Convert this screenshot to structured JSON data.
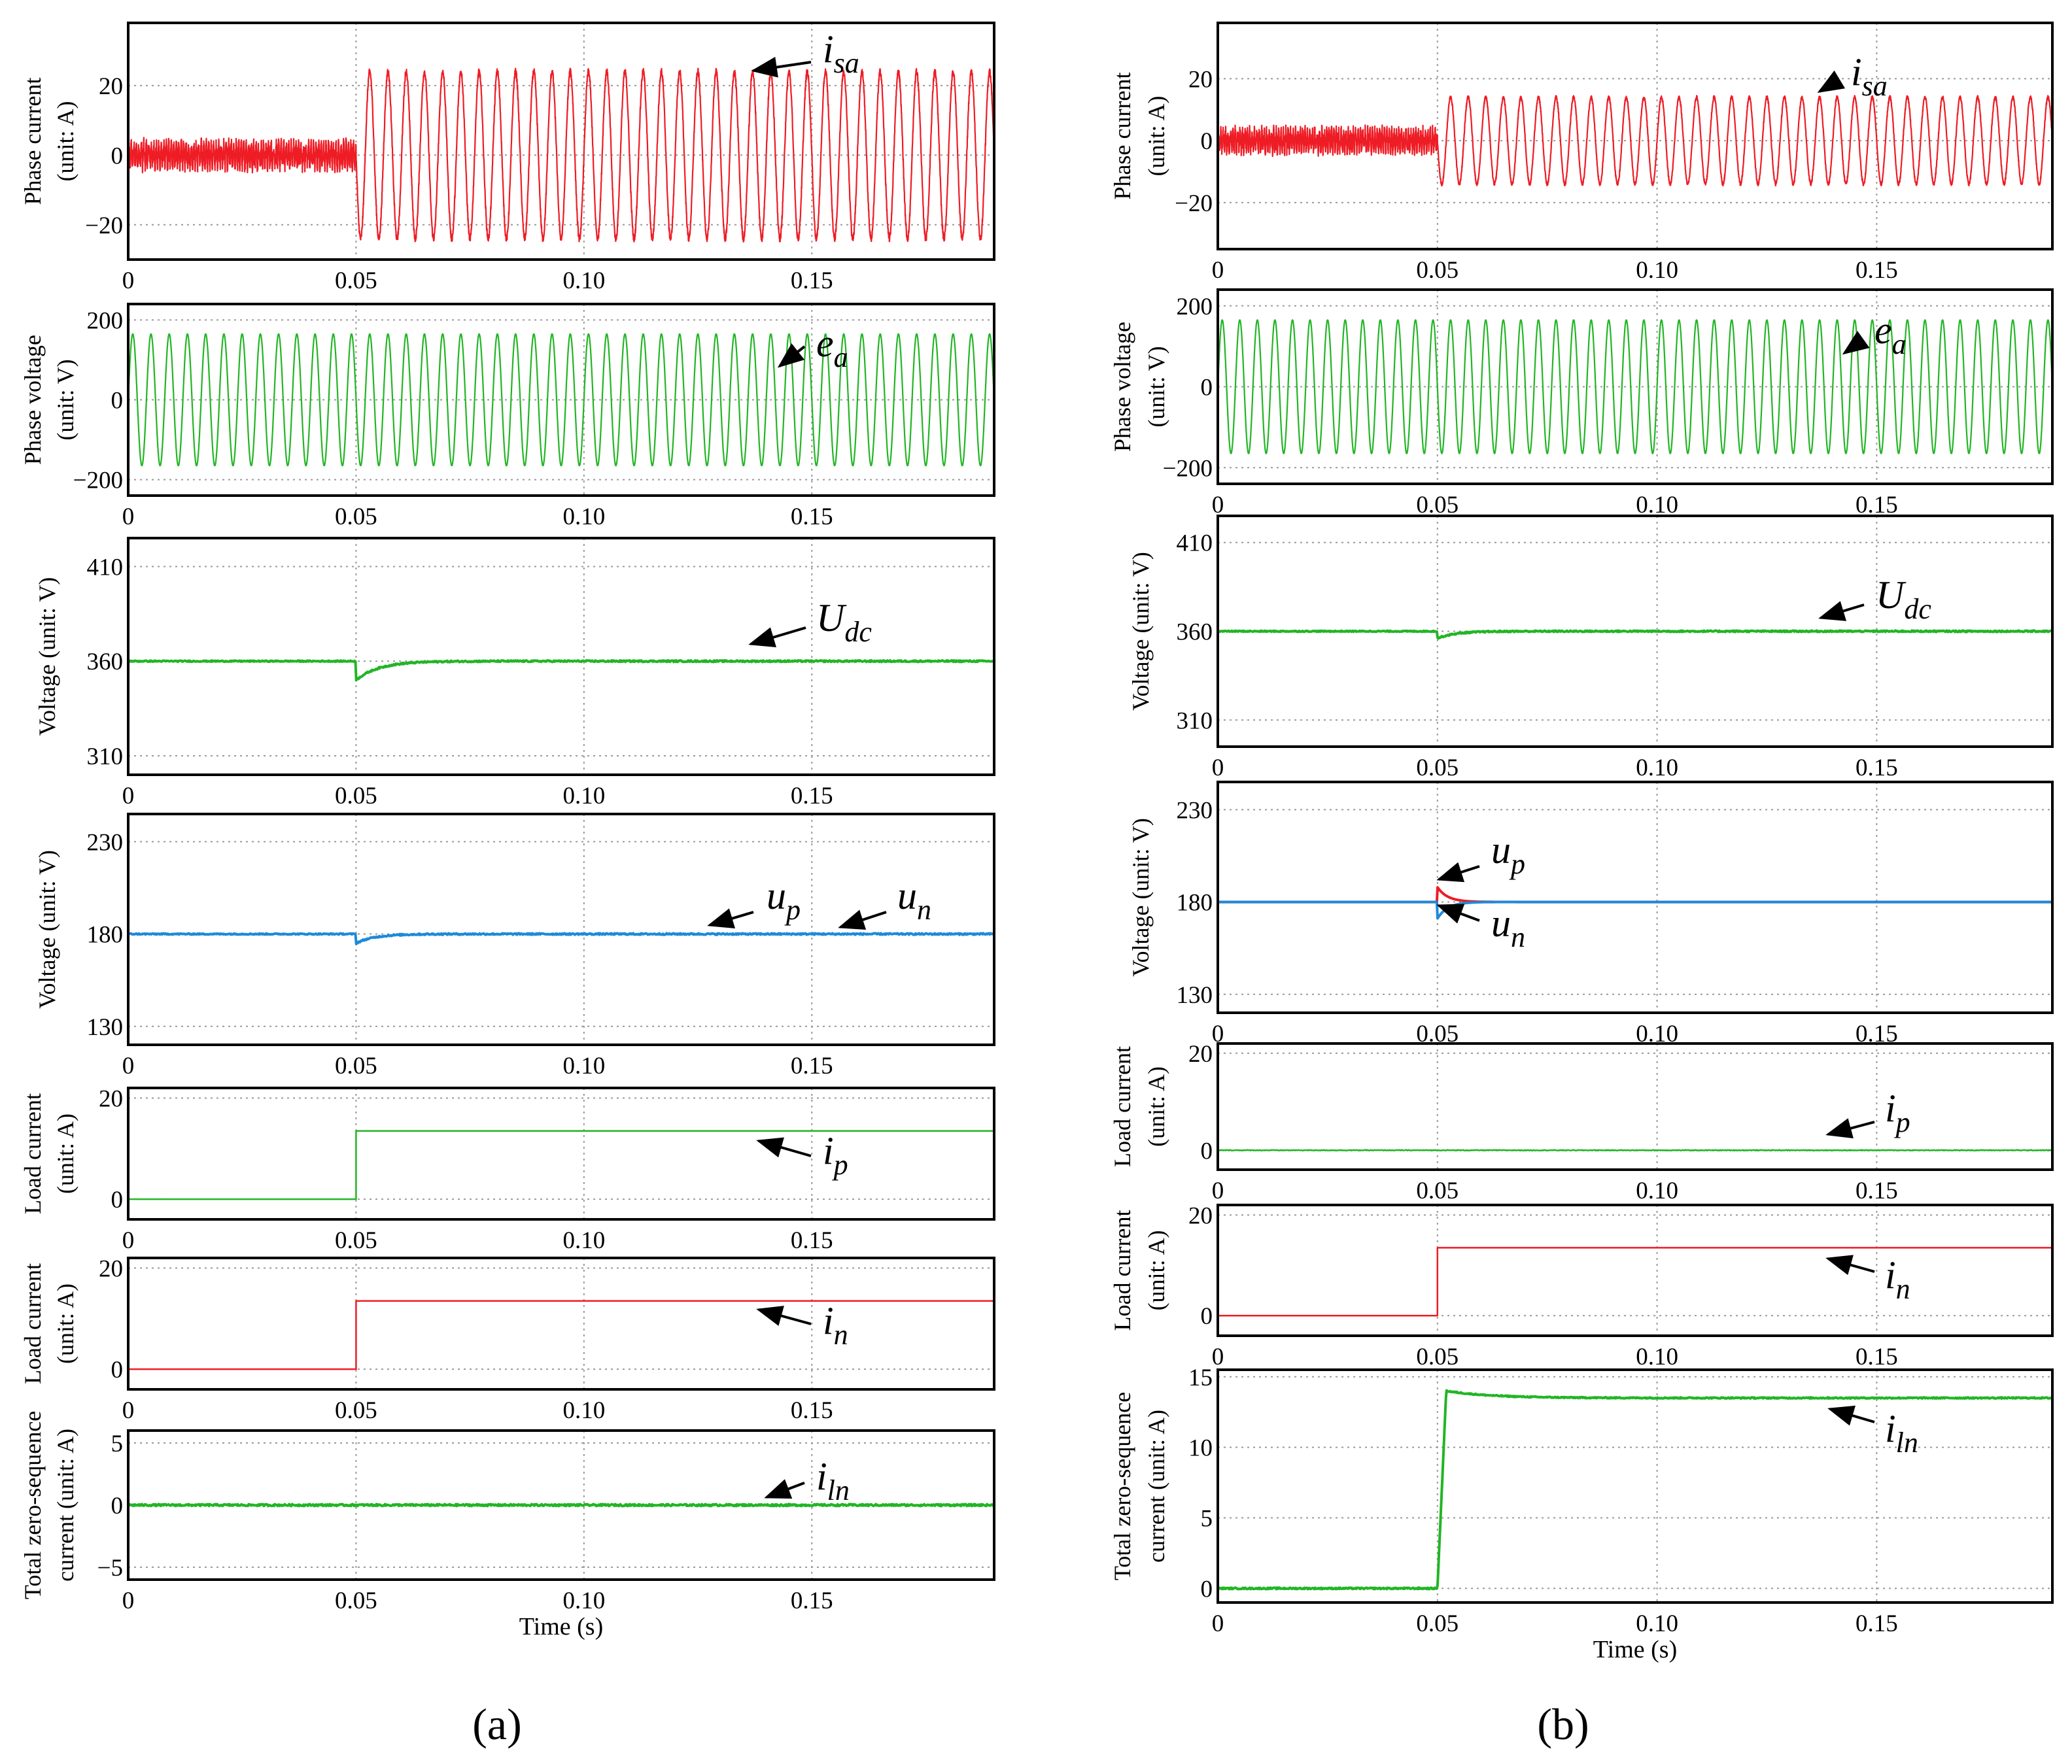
{
  "panel_labels": {
    "a": "(a)",
    "b": "(b)"
  },
  "chart_data": [
    {
      "id": "a1",
      "type": "line",
      "ylabel_lines": [
        "Phase current",
        "(unit: A)"
      ],
      "xlim": [
        0,
        0.19
      ],
      "ylim": [
        -30,
        38
      ],
      "xticks": [
        0,
        0.05,
        0.1,
        0.15
      ],
      "xtick_labels": [
        "0",
        "0.05",
        "0.10",
        "0.15"
      ],
      "yticks": [
        20,
        0,
        -20
      ],
      "ytick_labels": [
        "20",
        "0",
        "−20"
      ],
      "xlabel": "",
      "series": [
        {
          "color": "#ee1c25",
          "waveform": "sine_step",
          "pre_amplitude": 3,
          "post_amplitude": 24,
          "step_time": 0.05,
          "frequency_hz": 250
        }
      ],
      "annotations": [
        {
          "main": "i",
          "sub": "sa"
        }
      ]
    },
    {
      "id": "a2",
      "type": "line",
      "ylabel_lines": [
        "Phase voltage",
        "(unit: V)"
      ],
      "xlim": [
        0,
        0.19
      ],
      "ylim": [
        -240,
        240
      ],
      "xticks": [
        0,
        0.05,
        0.1,
        0.15
      ],
      "xtick_labels": [
        "0",
        "0.05",
        "0.10",
        "0.15"
      ],
      "yticks": [
        200,
        0,
        -200
      ],
      "ytick_labels": [
        "200",
        "0",
        "−200"
      ],
      "xlabel": "",
      "series": [
        {
          "color": "#22b525",
          "waveform": "sine",
          "amplitude": 165,
          "frequency_hz": 250
        }
      ],
      "annotations": [
        {
          "main": "e",
          "sub": "a"
        }
      ]
    },
    {
      "id": "a3",
      "type": "line",
      "ylabel_lines": [
        "Voltage (unit: V)"
      ],
      "xlim": [
        0,
        0.19
      ],
      "ylim": [
        300,
        425
      ],
      "xticks": [
        0,
        0.05,
        0.1,
        0.15
      ],
      "xtick_labels": [
        "0",
        "0.05",
        "0.10",
        "0.15"
      ],
      "yticks": [
        410,
        360,
        310
      ],
      "ytick_labels": [
        "410",
        "360",
        "310"
      ],
      "xlabel": "",
      "series": [
        {
          "color": "#22b525",
          "waveform": "dip_recover",
          "level": 360,
          "dip": 10,
          "step_time": 0.05,
          "recovery_s": 0.015
        }
      ],
      "annotations": [
        {
          "main": "U",
          "sub": "dc"
        }
      ]
    },
    {
      "id": "a4",
      "type": "line",
      "ylabel_lines": [
        "Voltage (unit: V)"
      ],
      "xlim": [
        0,
        0.19
      ],
      "ylim": [
        120,
        245
      ],
      "xticks": [
        0,
        0.05,
        0.1,
        0.15
      ],
      "xtick_labels": [
        "0",
        "0.05",
        "0.10",
        "0.15"
      ],
      "yticks": [
        230,
        180,
        130
      ],
      "ytick_labels": [
        "230",
        "180",
        "130"
      ],
      "xlabel": "",
      "series": [
        {
          "color": "#1e8ad7",
          "waveform": "dip_recover",
          "level": 180,
          "dip": 5,
          "step_time": 0.05,
          "recovery_s": 0.012
        }
      ],
      "annotations": [
        {
          "main": "u",
          "sub": "p"
        },
        {
          "main": "u",
          "sub": "n"
        }
      ]
    },
    {
      "id": "a5",
      "type": "line",
      "ylabel_lines": [
        "Load current",
        "(unit: A)"
      ],
      "xlim": [
        0,
        0.19
      ],
      "ylim": [
        -4,
        22
      ],
      "xticks": [
        0,
        0.05,
        0.1,
        0.15
      ],
      "xtick_labels": [
        "0",
        "0.05",
        "0.10",
        "0.15"
      ],
      "yticks": [
        20,
        0
      ],
      "ytick_labels": [
        "20",
        "0"
      ],
      "xlabel": "",
      "series": [
        {
          "color": "#22b525",
          "waveform": "step",
          "pre": 0,
          "post": 13.5,
          "step_time": 0.05
        }
      ],
      "annotations": [
        {
          "main": "i",
          "sub": "p"
        }
      ]
    },
    {
      "id": "a6",
      "type": "line",
      "ylabel_lines": [
        "Load current",
        "(unit: A)"
      ],
      "xlim": [
        0,
        0.19
      ],
      "ylim": [
        -4,
        22
      ],
      "xticks": [
        0,
        0.05,
        0.1,
        0.15
      ],
      "xtick_labels": [
        "0",
        "0.05",
        "0.10",
        "0.15"
      ],
      "yticks": [
        20,
        0
      ],
      "ytick_labels": [
        "20",
        "0"
      ],
      "xlabel": "",
      "series": [
        {
          "color": "#ee1c25",
          "waveform": "step",
          "pre": 0,
          "post": 13.5,
          "step_time": 0.05
        }
      ],
      "annotations": [
        {
          "main": "i",
          "sub": "n"
        }
      ]
    },
    {
      "id": "a7",
      "type": "line",
      "ylabel_lines": [
        "Total zero-sequence",
        "current (unit: A)"
      ],
      "xlim": [
        0,
        0.19
      ],
      "ylim": [
        -6,
        6
      ],
      "xticks": [
        0,
        0.05,
        0.1,
        0.15
      ],
      "xtick_labels": [
        "0",
        "0.05",
        "0.10",
        "0.15"
      ],
      "yticks": [
        5,
        0,
        -5
      ],
      "ytick_labels": [
        "5",
        "0",
        "−5"
      ],
      "xlabel": "Time (s)",
      "series": [
        {
          "color": "#22b525",
          "waveform": "constant",
          "level": 0
        }
      ],
      "annotations": [
        {
          "main": "i",
          "sub": "ln"
        }
      ]
    },
    {
      "id": "b1",
      "type": "line",
      "ylabel_lines": [
        "Phase current",
        "(unit: A)"
      ],
      "xlim": [
        0,
        0.19
      ],
      "ylim": [
        -35,
        38
      ],
      "xticks": [
        0,
        0.05,
        0.1,
        0.15
      ],
      "xtick_labels": [
        "0",
        "0.05",
        "0.10",
        "0.15"
      ],
      "yticks": [
        20,
        0,
        -20
      ],
      "ytick_labels": [
        "20",
        "0",
        "−20"
      ],
      "xlabel": "",
      "series": [
        {
          "color": "#ee1c25",
          "waveform": "sine_step",
          "pre_amplitude": 3,
          "post_amplitude": 14,
          "step_time": 0.05,
          "frequency_hz": 250
        }
      ],
      "annotations": [
        {
          "main": "i",
          "sub": "sa"
        }
      ]
    },
    {
      "id": "b2",
      "type": "line",
      "ylabel_lines": [
        "Phase voltage",
        "(unit: V)"
      ],
      "xlim": [
        0,
        0.19
      ],
      "ylim": [
        -240,
        240
      ],
      "xticks": [
        0,
        0.05,
        0.1,
        0.15
      ],
      "xtick_labels": [
        "0",
        "0.05",
        "0.10",
        "0.15"
      ],
      "yticks": [
        200,
        0,
        -200
      ],
      "ytick_labels": [
        "200",
        "0",
        "−200"
      ],
      "xlabel": "",
      "series": [
        {
          "color": "#22b525",
          "waveform": "sine",
          "amplitude": 165,
          "frequency_hz": 250
        }
      ],
      "annotations": [
        {
          "main": "e",
          "sub": "a"
        }
      ]
    },
    {
      "id": "b3",
      "type": "line",
      "ylabel_lines": [
        "Voltage (unit: V)"
      ],
      "xlim": [
        0,
        0.19
      ],
      "ylim": [
        295,
        425
      ],
      "xticks": [
        0,
        0.05,
        0.1,
        0.15
      ],
      "xtick_labels": [
        "0",
        "0.05",
        "0.10",
        "0.15"
      ],
      "yticks": [
        410,
        360,
        310
      ],
      "ytick_labels": [
        "410",
        "360",
        "310"
      ],
      "xlabel": "",
      "series": [
        {
          "color": "#22b525",
          "waveform": "dip_recover",
          "level": 360,
          "dip": 4,
          "step_time": 0.05,
          "recovery_s": 0.012
        }
      ],
      "annotations": [
        {
          "main": "U",
          "sub": "dc"
        }
      ]
    },
    {
      "id": "b4",
      "type": "line",
      "ylabel_lines": [
        "Voltage (unit: V)"
      ],
      "xlim": [
        0,
        0.19
      ],
      "ylim": [
        120,
        245
      ],
      "xticks": [
        0,
        0.05,
        0.1,
        0.15
      ],
      "xtick_labels": [
        "0",
        "0.05",
        "0.10",
        "0.15"
      ],
      "yticks": [
        230,
        180,
        130
      ],
      "ytick_labels": [
        "230",
        "180",
        "130"
      ],
      "xlabel": "",
      "series": [
        {
          "color": "#ee1c25",
          "waveform": "spike_decay",
          "level": 180,
          "peak": 188,
          "step_time": 0.05,
          "decay_s": 0.007
        },
        {
          "color": "#1e8ad7",
          "waveform": "spike_decay",
          "level": 180,
          "peak": 171,
          "step_time": 0.05,
          "decay_s": 0.007
        }
      ],
      "annotations": [
        {
          "main": "u",
          "sub": "p"
        },
        {
          "main": "u",
          "sub": "n"
        }
      ]
    },
    {
      "id": "b5",
      "type": "line",
      "ylabel_lines": [
        "Load current",
        "(unit: A)"
      ],
      "xlim": [
        0,
        0.19
      ],
      "ylim": [
        -4,
        22
      ],
      "xticks": [
        0,
        0.05,
        0.1,
        0.15
      ],
      "xtick_labels": [
        "0",
        "0.05",
        "0.10",
        "0.15"
      ],
      "yticks": [
        20,
        0
      ],
      "ytick_labels": [
        "20",
        "0"
      ],
      "xlabel": "",
      "series": [
        {
          "color": "#22b525",
          "waveform": "constant",
          "level": 0
        }
      ],
      "annotations": [
        {
          "main": "i",
          "sub": "p"
        }
      ]
    },
    {
      "id": "b6",
      "type": "line",
      "ylabel_lines": [
        "Load current",
        "(unit: A)"
      ],
      "xlim": [
        0,
        0.19
      ],
      "ylim": [
        -4,
        22
      ],
      "xticks": [
        0,
        0.05,
        0.1,
        0.15
      ],
      "xtick_labels": [
        "0",
        "0.05",
        "0.10",
        "0.15"
      ],
      "yticks": [
        20,
        0
      ],
      "ytick_labels": [
        "20",
        "0"
      ],
      "xlabel": "",
      "series": [
        {
          "color": "#ee1c25",
          "waveform": "step",
          "pre": 0,
          "post": 13.5,
          "step_time": 0.05
        }
      ],
      "annotations": [
        {
          "main": "i",
          "sub": "n"
        }
      ]
    },
    {
      "id": "b7",
      "type": "line",
      "ylabel_lines": [
        "Total zero-sequence",
        "current (unit: A)"
      ],
      "xlim": [
        0,
        0.19
      ],
      "ylim": [
        -1,
        15.5
      ],
      "xticks": [
        0,
        0.05,
        0.1,
        0.15
      ],
      "xtick_labels": [
        "0",
        "0.05",
        "0.10",
        "0.15"
      ],
      "yticks": [
        15,
        10,
        5,
        0
      ],
      "ytick_labels": [
        "15",
        "10",
        "5",
        "0"
      ],
      "xlabel": "Time (s)",
      "series": [
        {
          "color": "#22b525",
          "waveform": "rise_settle",
          "pre": 0,
          "post": 13.5,
          "peak": 14,
          "step_time": 0.05,
          "rise_s": 0.002
        }
      ],
      "annotations": [
        {
          "main": "i",
          "sub": "ln"
        }
      ]
    }
  ]
}
